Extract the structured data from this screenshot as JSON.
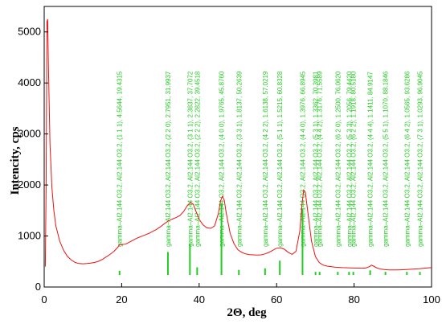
{
  "chart_data": {
    "type": "line",
    "title": "",
    "xlabel": "2Θ, deg",
    "ylabel": "Intencity, cps",
    "xlim": [
      0,
      100
    ],
    "ylim": [
      0,
      5500
    ],
    "x_ticks": [
      "0",
      "20",
      "40",
      "60",
      "80",
      "100"
    ],
    "y_ticks": [
      "0",
      "1000",
      "2000",
      "3000",
      "4000",
      "5000"
    ],
    "grid": false,
    "colors": {
      "pattern": "#ee1111",
      "reference": "#22cc22",
      "axis": "#000000"
    },
    "series": [
      {
        "name": "",
        "points": [
          [
            0.3,
            400
          ],
          [
            0.5,
            2000
          ],
          [
            0.7,
            5200
          ],
          [
            0.9,
            5250
          ],
          [
            1.1,
            4300
          ],
          [
            1.5,
            2800
          ],
          [
            2,
            1950
          ],
          [
            2.5,
            1500
          ],
          [
            3,
            1200
          ],
          [
            4,
            900
          ],
          [
            5,
            720
          ],
          [
            6,
            600
          ],
          [
            7,
            530
          ],
          [
            8,
            480
          ],
          [
            9,
            460
          ],
          [
            10,
            455
          ],
          [
            11,
            460
          ],
          [
            12,
            470
          ],
          [
            13,
            480
          ],
          [
            14,
            505
          ],
          [
            15,
            540
          ],
          [
            16,
            590
          ],
          [
            17,
            640
          ],
          [
            18,
            700
          ],
          [
            19,
            780
          ],
          [
            19.6,
            840
          ],
          [
            20,
            830
          ],
          [
            21,
            840
          ],
          [
            22,
            880
          ],
          [
            23,
            920
          ],
          [
            24,
            960
          ],
          [
            25,
            990
          ],
          [
            26,
            1020
          ],
          [
            27,
            1050
          ],
          [
            28,
            1090
          ],
          [
            29,
            1130
          ],
          [
            30,
            1180
          ],
          [
            31,
            1240
          ],
          [
            32,
            1290
          ],
          [
            33,
            1330
          ],
          [
            34,
            1360
          ],
          [
            35,
            1400
          ],
          [
            36,
            1480
          ],
          [
            37,
            1600
          ],
          [
            37.8,
            1660
          ],
          [
            38.5,
            1620
          ],
          [
            39.2,
            1480
          ],
          [
            40,
            1330
          ],
          [
            41,
            1220
          ],
          [
            42,
            1160
          ],
          [
            43,
            1150
          ],
          [
            44,
            1200
          ],
          [
            45,
            1450
          ],
          [
            45.5,
            1680
          ],
          [
            46,
            1780
          ],
          [
            46.5,
            1700
          ],
          [
            47,
            1450
          ],
          [
            48,
            1050
          ],
          [
            49,
            850
          ],
          [
            50,
            730
          ],
          [
            51,
            680
          ],
          [
            52,
            650
          ],
          [
            53,
            635
          ],
          [
            54,
            630
          ],
          [
            55,
            625
          ],
          [
            56,
            630
          ],
          [
            57,
            650
          ],
          [
            58,
            680
          ],
          [
            59,
            720
          ],
          [
            60,
            760
          ],
          [
            61,
            770
          ],
          [
            62,
            740
          ],
          [
            63,
            680
          ],
          [
            64,
            640
          ],
          [
            65,
            700
          ],
          [
            66,
            1100
          ],
          [
            66.6,
            1650
          ],
          [
            67,
            1900
          ],
          [
            67.4,
            1860
          ],
          [
            68,
            1500
          ],
          [
            69,
            900
          ],
          [
            70,
            600
          ],
          [
            71,
            480
          ],
          [
            72,
            430
          ],
          [
            73,
            410
          ],
          [
            74,
            400
          ],
          [
            75,
            390
          ],
          [
            76,
            385
          ],
          [
            77,
            380
          ],
          [
            78,
            378
          ],
          [
            79,
            375
          ],
          [
            80,
            372
          ],
          [
            81,
            370
          ],
          [
            82,
            368
          ],
          [
            83,
            372
          ],
          [
            84,
            400
          ],
          [
            84.5,
            430
          ],
          [
            85,
            410
          ],
          [
            86,
            370
          ],
          [
            87,
            350
          ],
          [
            88,
            340
          ],
          [
            89,
            335
          ],
          [
            90,
            335
          ],
          [
            91,
            335
          ],
          [
            92,
            338
          ],
          [
            93,
            340
          ],
          [
            94,
            345
          ],
          [
            95,
            350
          ],
          [
            96,
            355
          ],
          [
            97,
            360
          ],
          [
            98,
            368
          ],
          [
            99,
            375
          ],
          [
            100,
            380
          ]
        ]
      }
    ],
    "reference_peaks": [
      {
        "x": 19.45,
        "height": 80,
        "label": "gamma–Al2.144 O3.2, Al2.144 O3.2, (1 1 1), 4.5644, 19.4315"
      },
      {
        "x": 31.94,
        "height": 450,
        "label": "gamma–Al2.144 O3.2, Al2.144 O3.2, (2 2 0), 2.7951, 31.9937"
      },
      {
        "x": 37.62,
        "height": 620,
        "label": "gamma–Al2.144 O3.2, Al2.144 O3.2, (3 1 1), 2.3837, 37.7072"
      },
      {
        "x": 39.49,
        "height": 150,
        "label": "gamma–Al2.144 O3.2, Al2.144 O3.2, (2 2 2), 2.2822, 39.4518"
      },
      {
        "x": 45.76,
        "height": 1400,
        "label": "gamma–Al2.144 O3.2, Al2.144 O3.2, (4 0 0), 1.9765, 45.8760"
      },
      {
        "x": 50.26,
        "height": 100,
        "label": "gamma–Al2.144 O3.2, Al2.144 O3.2, (3 3 1), 1.8137, 50.2639"
      },
      {
        "x": 57.02,
        "height": 130,
        "label": "gamma–Al2.144 O3.2, Al2.144 O3.2, (4 2 2), 1.6138, 57.0219"
      },
      {
        "x": 60.83,
        "height": 280,
        "label": "gamma–Al2.144 O3.2, Al2.144 O3.2, (5 1 1), 1.5215, 60.8328"
      },
      {
        "x": 66.69,
        "height": 1300,
        "label": "gamma–Al2.144 O3.2, Al2.144 O3.2, (4 4 0), 1.3976, 66.8945"
      },
      {
        "x": 70.05,
        "height": 60,
        "label": "gamma–Al2.144 O3.2, Al2.144 O3.2, (5 3 1), 1.3362, 70.3981"
      },
      {
        "x": 71.1,
        "height": 60,
        "label": "gamma–Al2.144 O3.2, Al2.144 O3.2, (4 4 2), 1.3176, 71.5589"
      },
      {
        "x": 75.8,
        "height": 60,
        "label": "gamma–Al2.144 O3.2, Al2.144 O3.2, (6 2 0), 1.2500, 76.0620"
      },
      {
        "x": 78.7,
        "height": 60,
        "label": "gamma–Al2.144 O3.2, Al2.144 O3.2, (5 3 3), 1.2056, 79.4420"
      },
      {
        "x": 79.8,
        "height": 60,
        "label": "gamma–Al2.144 O3.2, Al2.144 O3.2, (6 2 2), 1.1918, 80.5180"
      },
      {
        "x": 84.15,
        "height": 90,
        "label": "gamma–Al2.144 O3.2, Al2.144 O3.2, (4 4 4), 1.1411, 84.9147"
      },
      {
        "x": 88.1,
        "height": 60,
        "label": "gamma–Al2.144 O3.2, Al2.144 O3.2, (5 5 1), 1.1070, 88.1846"
      },
      {
        "x": 93.63,
        "height": 60,
        "label": "gamma–Al2.144 O3.2, Al2.144 O3.2, (6 4 2), 1.0565, 93.6286"
      },
      {
        "x": 97.0,
        "height": 60,
        "label": "gamma–Al2.144 O3.2, Al2.144 O3.2, (7 3 1), 1.0293, 96.9045"
      }
    ]
  }
}
